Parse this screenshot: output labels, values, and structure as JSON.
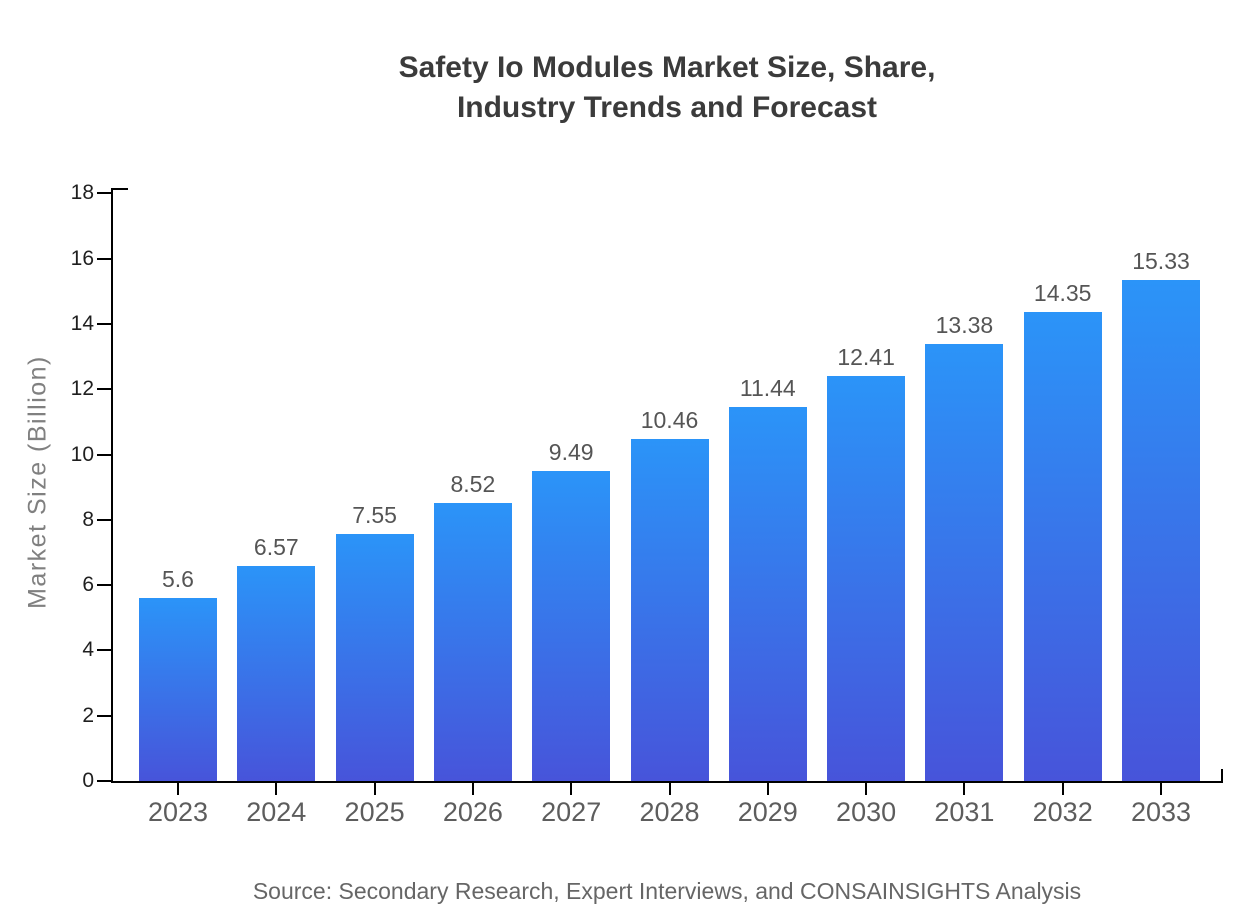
{
  "title": {
    "line1": "Safety Io Modules Market Size, Share,",
    "line2": "Industry Trends and Forecast"
  },
  "source": "Source: Secondary Research, Expert Interviews, and CONSAINSIGHTS Analysis",
  "chart_data": {
    "type": "bar",
    "title": "Safety Io Modules Market Size, Share, Industry Trends and Forecast",
    "categories": [
      "2023",
      "2024",
      "2025",
      "2026",
      "2027",
      "2028",
      "2029",
      "2030",
      "2031",
      "2032",
      "2033"
    ],
    "values": [
      5.6,
      6.57,
      7.55,
      8.52,
      9.49,
      10.46,
      11.44,
      12.41,
      13.38,
      14.35,
      15.33
    ],
    "value_labels": [
      "5.6",
      "6.57",
      "7.55",
      "8.52",
      "9.49",
      "10.46",
      "11.44",
      "12.41",
      "13.38",
      "14.35",
      "15.33"
    ],
    "xlabel": "",
    "ylabel": "Market Size (Billion)",
    "ylim": [
      0,
      18
    ],
    "ytick_step": 2,
    "ytick_labels": [
      "0",
      "2",
      "4",
      "6",
      "8",
      "10",
      "12",
      "14",
      "16",
      "18"
    ],
    "grid": false,
    "legend_position": "none",
    "colors": {
      "bar_gradient_top": "#2b94f8",
      "bar_gradient_bottom": "#4754da",
      "axis": "#000000",
      "title_text": "#3b3b3b",
      "ytick_text": "#1f1f1f",
      "xtick_text": "#5d5d5d",
      "value_label_text": "#555555",
      "ylabel_text": "#808080",
      "source_text": "#666666"
    }
  }
}
